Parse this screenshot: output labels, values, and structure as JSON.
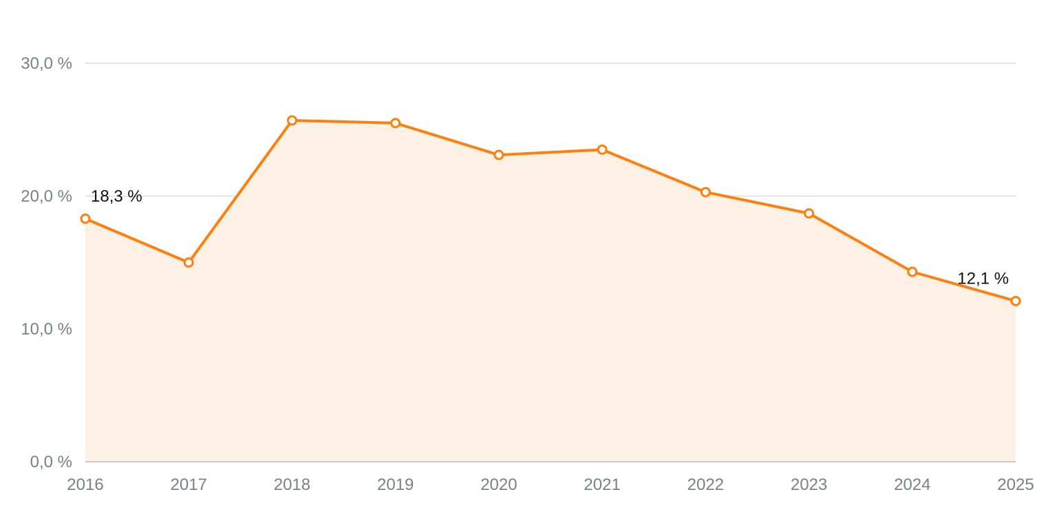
{
  "chart_data": {
    "type": "area",
    "title": "",
    "xlabel": "",
    "ylabel": "",
    "categories": [
      "2016",
      "2017",
      "2018",
      "2019",
      "2020",
      "2021",
      "2022",
      "2023",
      "2024",
      "2025"
    ],
    "series": [
      {
        "values": [
          18.3,
          15.0,
          25.7,
          25.5,
          23.1,
          23.5,
          20.3,
          18.7,
          14.3,
          12.1
        ],
        "color": "#ff7f0e",
        "fill_color": "#fdf1e6"
      }
    ],
    "ylim": [
      0,
      30
    ],
    "y_ticks": [
      0,
      10,
      20,
      30
    ],
    "y_tick_labels": [
      "0,0 %",
      "10,0 %",
      "20,0 %",
      "30,0 %"
    ],
    "data_labels": [
      {
        "category": "2016",
        "text": "18,3 %"
      },
      {
        "category": "2025",
        "text": "12,1 %"
      }
    ],
    "grid": true,
    "legend": "none"
  }
}
